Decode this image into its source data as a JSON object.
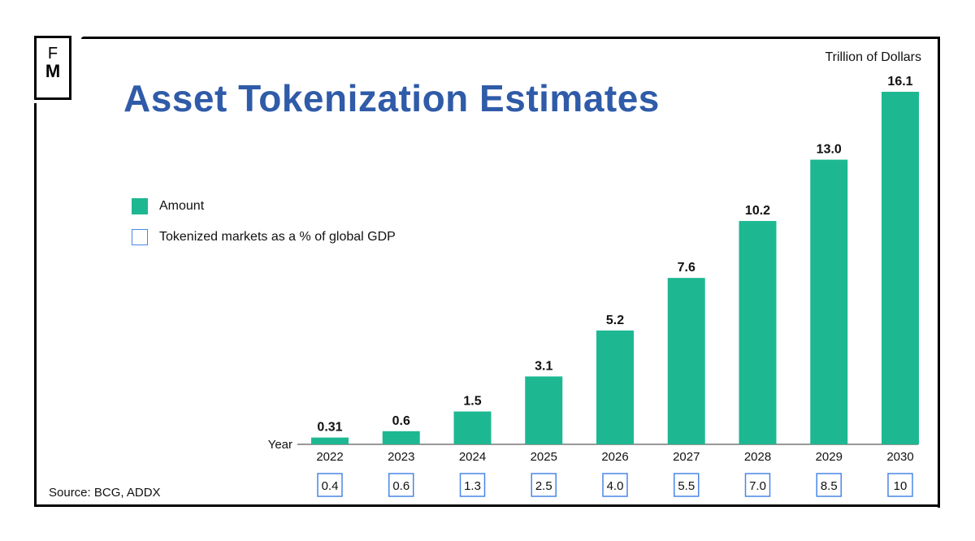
{
  "logo": {
    "top": "F",
    "bottom": "M"
  },
  "chart_data": {
    "type": "bar",
    "title": "Asset Tokenization Estimates",
    "unit_label": "Trillion of Dollars",
    "xlabel": "Year",
    "categories": [
      "2022",
      "2023",
      "2024",
      "2025",
      "2026",
      "2027",
      "2028",
      "2029",
      "2030"
    ],
    "series": [
      {
        "name": "Amount",
        "values": [
          0.31,
          0.6,
          1.5,
          3.1,
          5.2,
          7.6,
          10.2,
          13.0,
          16.1
        ],
        "labels": [
          "0.31",
          "0.6",
          "1.5",
          "3.1",
          "5.2",
          "7.6",
          "10.2",
          "13.0",
          "16.1"
        ],
        "color": "#1db892"
      },
      {
        "name": "Tokenized markets as a % of global GDP",
        "values": [
          0.4,
          0.6,
          1.3,
          2.5,
          4.0,
          5.5,
          7.0,
          8.5,
          10
        ],
        "labels": [
          "0.4",
          "0.6",
          "1.3",
          "2.5",
          "4.0",
          "5.5",
          "7.0",
          "8.5",
          "10"
        ],
        "color": "#4a86e8"
      }
    ],
    "ylim": [
      0,
      16.1
    ],
    "grid": false,
    "legend_position": "left"
  },
  "source": "Source: BCG, ADDX"
}
